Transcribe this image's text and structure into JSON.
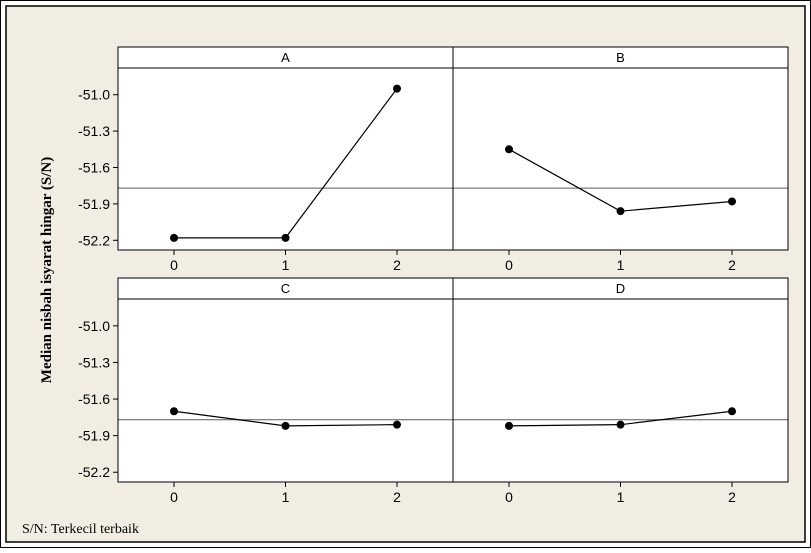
{
  "chart_data": {
    "type": "line",
    "ylabel": "Median nisbah isyarat hingar (S/N)",
    "footnote": "S/N: Terkecil terbaik",
    "ylim": [
      -52.28,
      -50.78
    ],
    "yticks": [
      -51.0,
      -51.3,
      -51.6,
      -51.9,
      -52.2
    ],
    "ytick_labels": [
      "-51.0",
      "-51.3",
      "-51.6",
      "-51.9",
      "-52.2"
    ],
    "x_levels": [
      "0",
      "1",
      "2"
    ],
    "mean_line": -51.77,
    "grid": false,
    "colors": {
      "background": "#f1ede3",
      "plot_area": "#ffffff",
      "line": "#000000",
      "reference_line": "#5a5a5a",
      "frame": "#000000"
    },
    "panels": [
      {
        "label": "A",
        "x": [
          0,
          1,
          2
        ],
        "values": [
          -52.18,
          -52.18,
          -50.95
        ]
      },
      {
        "label": "B",
        "x": [
          0,
          1,
          2
        ],
        "values": [
          -51.45,
          -51.96,
          -51.88
        ]
      },
      {
        "label": "C",
        "x": [
          0,
          1,
          2
        ],
        "values": [
          -51.7,
          -51.82,
          -51.81
        ]
      },
      {
        "label": "D",
        "x": [
          0,
          1,
          2
        ],
        "values": [
          -51.82,
          -51.81,
          -51.7
        ]
      }
    ]
  }
}
